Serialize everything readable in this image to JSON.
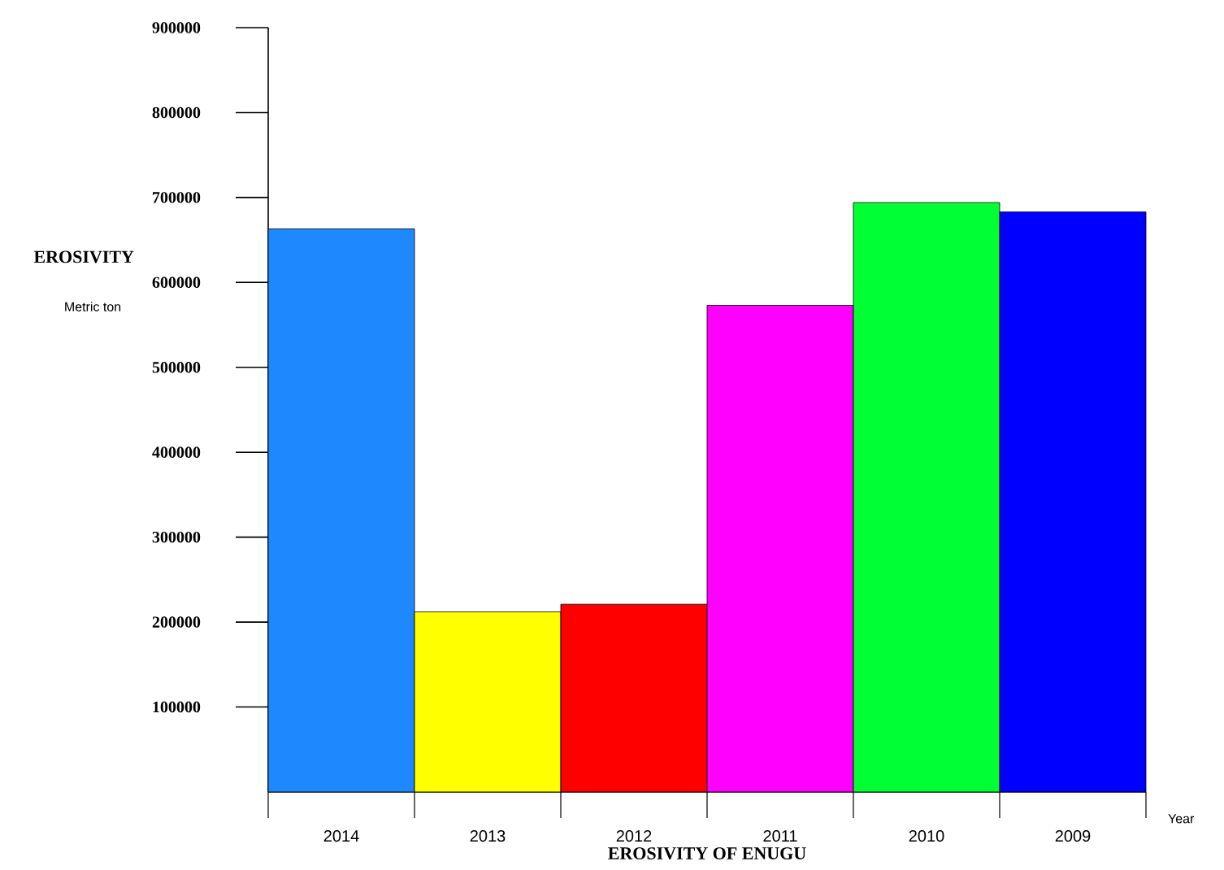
{
  "chart_data": {
    "type": "bar",
    "xlabel": "EROSIVITY OF ENUGU",
    "ylabel": "EROSIVITY",
    "annotations": [
      "Metric ton",
      "Year"
    ],
    "categories": [
      "2014",
      "2013",
      "2012",
      "2011",
      "2010",
      "2009"
    ],
    "values": [
      663000,
      212000,
      221000,
      573000,
      694000,
      683000
    ],
    "colors": [
      "#1e88ff",
      "#ffff00",
      "#ff0000",
      "#ff00ff",
      "#00ff33",
      "#0000ff"
    ],
    "ylim": [
      0,
      900000
    ],
    "yticks": [
      100000,
      200000,
      300000,
      400000,
      500000,
      600000,
      700000,
      800000,
      900000
    ],
    "grid": false
  }
}
